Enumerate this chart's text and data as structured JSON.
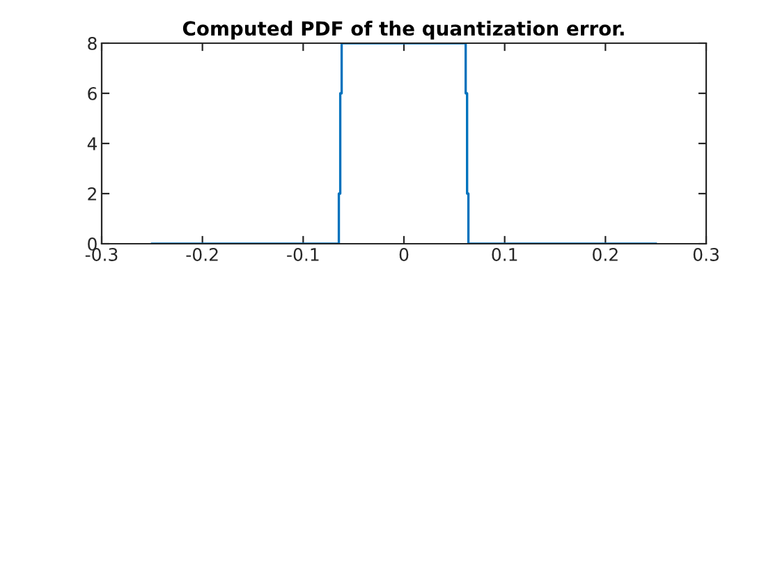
{
  "chart_data": {
    "type": "line",
    "title": "Computed PDF of the quantization error.",
    "series": [
      {
        "color": "#0072bd",
        "x": [
          -0.25,
          -0.0646,
          -0.0646,
          -0.0632,
          -0.0632,
          -0.0618,
          -0.0618,
          0.0613,
          0.0613,
          0.0627,
          0.0627,
          0.064,
          0.064,
          0.25
        ],
        "values": [
          0,
          0,
          2,
          2,
          6,
          6,
          8,
          8,
          6,
          6,
          2,
          2,
          0,
          0
        ]
      }
    ],
    "xlim": [
      -0.3,
      0.3
    ],
    "xticks": [
      -0.3,
      -0.2,
      -0.1,
      0,
      0.1,
      0.2,
      0.3
    ],
    "ylim": [
      0,
      8
    ],
    "yticks": [
      0,
      2,
      4,
      6,
      8
    ],
    "grid": false,
    "marker": "none",
    "line_style": "solid"
  }
}
